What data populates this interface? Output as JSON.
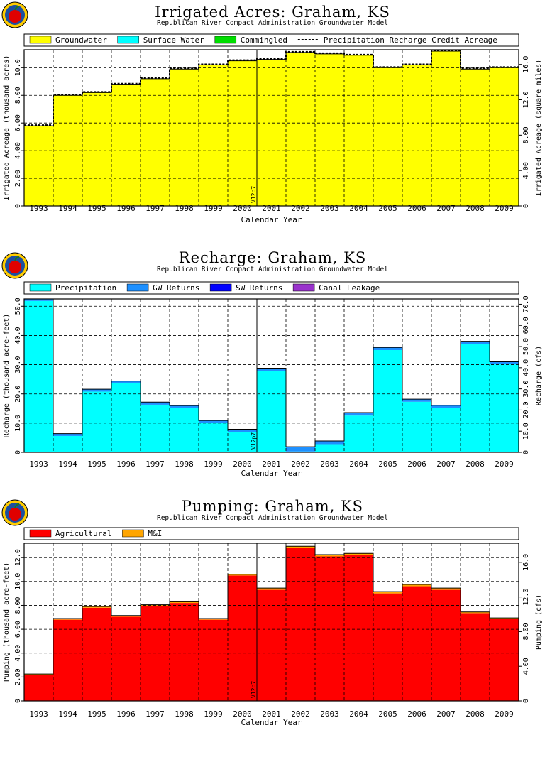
{
  "years": [
    "1993",
    "1994",
    "1995",
    "1996",
    "1997",
    "1998",
    "1999",
    "2000",
    "2001",
    "2002",
    "2003",
    "2004",
    "2005",
    "2006",
    "2007",
    "2008",
    "2009"
  ],
  "xlabel": "Calendar Year",
  "marker_label": "V12p7",
  "panels": [
    {
      "title": "Irrigated Acres: Graham, KS",
      "subtitle": "Republican River Compact Administration Groundwater Model",
      "legend": [
        {
          "label": "Groundwater",
          "color": "#ffff00",
          "kind": "box"
        },
        {
          "label": "Surface Water",
          "color": "#00ffff",
          "kind": "box"
        },
        {
          "label": "Commingled",
          "color": "#00dd00",
          "kind": "box"
        },
        {
          "label": "Precipitation Recharge Credit Acreage",
          "color": "#000000",
          "kind": "dash"
        }
      ]
    },
    {
      "title": "Recharge: Graham, KS",
      "subtitle": "Republican River Compact Administration Groundwater Model",
      "legend": [
        {
          "label": "Precipitation",
          "color": "#00ffff",
          "kind": "box"
        },
        {
          "label": "GW Returns",
          "color": "#1e90ff",
          "kind": "box"
        },
        {
          "label": "SW Returns",
          "color": "#0000ff",
          "kind": "box"
        },
        {
          "label": "Canal Leakage",
          "color": "#9932cc",
          "kind": "box"
        }
      ]
    },
    {
      "title": "Pumping: Graham, KS",
      "subtitle": "Republican River Compact Administration Groundwater Model",
      "legend": [
        {
          "label": "Agricultural",
          "color": "#ff0000",
          "kind": "box"
        },
        {
          "label": "M&I",
          "color": "#ffa500",
          "kind": "box"
        }
      ]
    }
  ],
  "chart_data": [
    {
      "type": "bar",
      "title": "Irrigated Acres: Graham, KS",
      "subtitle": "Republican River Compact Administration Groundwater Model",
      "xlabel": "Calendar Year",
      "ylabel": "Irrigated Acreage (thousand acres)",
      "y2label": "Irrigated Acreage (square miles)",
      "categories": [
        "1993",
        "1994",
        "1995",
        "1996",
        "1997",
        "1998",
        "1999",
        "2000",
        "2001",
        "2002",
        "2003",
        "2004",
        "2005",
        "2006",
        "2007",
        "2008",
        "2009"
      ],
      "ylim": [
        0,
        11.3
      ],
      "yticks": [
        0,
        2.0,
        4.0,
        6.0,
        8.0,
        10.0
      ],
      "ytick_labels": [
        "0",
        "2.00",
        "4.00",
        "6.00",
        "8.00",
        "10.0"
      ],
      "y2lim": [
        0,
        17.66
      ],
      "y2ticks": [
        0,
        4.0,
        8.0,
        12.0,
        16.0
      ],
      "y2tick_labels": [
        "0",
        "4.00",
        "8.00",
        "12.0",
        "16.0"
      ],
      "series": [
        {
          "name": "Groundwater",
          "color": "#ffff00",
          "values": [
            5.8,
            8.0,
            8.2,
            8.8,
            9.2,
            9.9,
            10.2,
            10.5,
            10.6,
            11.1,
            11.0,
            10.9,
            10.0,
            10.2,
            11.2,
            9.9,
            10.0
          ]
        },
        {
          "name": "Surface Water",
          "color": "#00ffff",
          "values": [
            0,
            0,
            0,
            0,
            0,
            0,
            0,
            0,
            0,
            0,
            0,
            0,
            0,
            0,
            0,
            0,
            0
          ]
        },
        {
          "name": "Commingled",
          "color": "#00dd00",
          "values": [
            0,
            0,
            0,
            0,
            0,
            0,
            0,
            0,
            0,
            0,
            0,
            0,
            0,
            0,
            0,
            0,
            0
          ]
        },
        {
          "name": "Precipitation Recharge Credit Acreage",
          "color": "#000000",
          "style": "dashed-step",
          "values": [
            5.85,
            8.05,
            8.25,
            8.85,
            9.25,
            9.95,
            10.25,
            10.55,
            10.65,
            11.15,
            11.05,
            10.95,
            10.05,
            10.25,
            11.25,
            9.95,
            10.05
          ]
        }
      ],
      "grid": true,
      "legend_position": "top"
    },
    {
      "type": "bar",
      "title": "Recharge: Graham, KS",
      "subtitle": "Republican River Compact Administration Groundwater Model",
      "xlabel": "Calendar Year",
      "ylabel": "Recharge (thousand acre-feet)",
      "y2label": "Recharge (cfs)",
      "categories": [
        "1993",
        "1994",
        "1995",
        "1996",
        "1997",
        "1998",
        "1999",
        "2000",
        "2001",
        "2002",
        "2003",
        "2004",
        "2005",
        "2006",
        "2007",
        "2008",
        "2009"
      ],
      "ylim": [
        0,
        52.5
      ],
      "yticks": [
        0,
        10,
        20,
        30,
        40,
        50
      ],
      "ytick_labels": [
        "0",
        "10.0",
        "20.0",
        "30.0",
        "40.0",
        "50.0"
      ],
      "y2lim": [
        0,
        72.5
      ],
      "y2ticks": [
        0,
        10,
        20,
        30,
        40,
        50,
        60,
        70
      ],
      "y2tick_labels": [
        "0",
        "10.0",
        "20.0",
        "30.0",
        "40.0",
        "50.0",
        "60.0",
        "70.0"
      ],
      "series": [
        {
          "name": "Precipitation",
          "color": "#00ffff",
          "values": [
            51.8,
            5.6,
            20.8,
            23.6,
            16.3,
            15.1,
            10.0,
            7.0,
            27.8,
            0.3,
            2.8,
            12.6,
            35.0,
            17.3,
            15.1,
            37.1,
            30.2
          ]
        },
        {
          "name": "GW Returns",
          "color": "#1e90ff",
          "values": [
            0.7,
            0.8,
            0.8,
            0.8,
            0.9,
            0.9,
            0.9,
            0.9,
            1.0,
            1.6,
            1.1,
            1.0,
            0.9,
            0.9,
            1.0,
            0.9,
            0.8
          ]
        },
        {
          "name": "SW Returns",
          "color": "#0000ff",
          "values": [
            0,
            0,
            0,
            0,
            0,
            0,
            0,
            0,
            0,
            0,
            0,
            0,
            0,
            0,
            0,
            0,
            0
          ]
        },
        {
          "name": "Canal Leakage",
          "color": "#9932cc",
          "values": [
            0,
            0,
            0,
            0,
            0,
            0,
            0,
            0,
            0,
            0,
            0,
            0,
            0,
            0,
            0,
            0,
            0
          ]
        }
      ],
      "grid": true,
      "legend_position": "top"
    },
    {
      "type": "bar",
      "title": "Pumping: Graham, KS",
      "subtitle": "Republican River Compact Administration Groundwater Model",
      "xlabel": "Calendar Year",
      "ylabel": "Pumping (thousand acre-feet)",
      "y2label": "Pumping (cfs)",
      "categories": [
        "1993",
        "1994",
        "1995",
        "1996",
        "1997",
        "1998",
        "1999",
        "2000",
        "2001",
        "2002",
        "2003",
        "2004",
        "2005",
        "2006",
        "2007",
        "2008",
        "2009"
      ],
      "ylim": [
        0,
        13.2
      ],
      "yticks": [
        0,
        2.0,
        4.0,
        6.0,
        8.0,
        10.0,
        12.0
      ],
      "ytick_labels": [
        "0",
        "2.00",
        "4.00",
        "6.00",
        "8.00",
        "10.0",
        "12.0"
      ],
      "y2lim": [
        0,
        18.2
      ],
      "y2ticks": [
        0,
        4.0,
        8.0,
        12.0,
        16.0
      ],
      "y2tick_labels": [
        "0",
        "4.00",
        "8.00",
        "12.0",
        "16.0"
      ],
      "series": [
        {
          "name": "Agricultural",
          "color": "#ff0000",
          "values": [
            2.15,
            6.8,
            7.8,
            7.05,
            7.95,
            8.2,
            6.8,
            10.5,
            9.3,
            12.8,
            12.1,
            12.2,
            9.0,
            9.6,
            9.3,
            7.35,
            6.85
          ]
        },
        {
          "name": "M&I",
          "color": "#ffa500",
          "values": [
            0.1,
            0.1,
            0.1,
            0.1,
            0.1,
            0.1,
            0.1,
            0.1,
            0.15,
            0.15,
            0.15,
            0.15,
            0.15,
            0.15,
            0.15,
            0.1,
            0.1
          ]
        }
      ],
      "grid": true,
      "legend_position": "top"
    }
  ]
}
